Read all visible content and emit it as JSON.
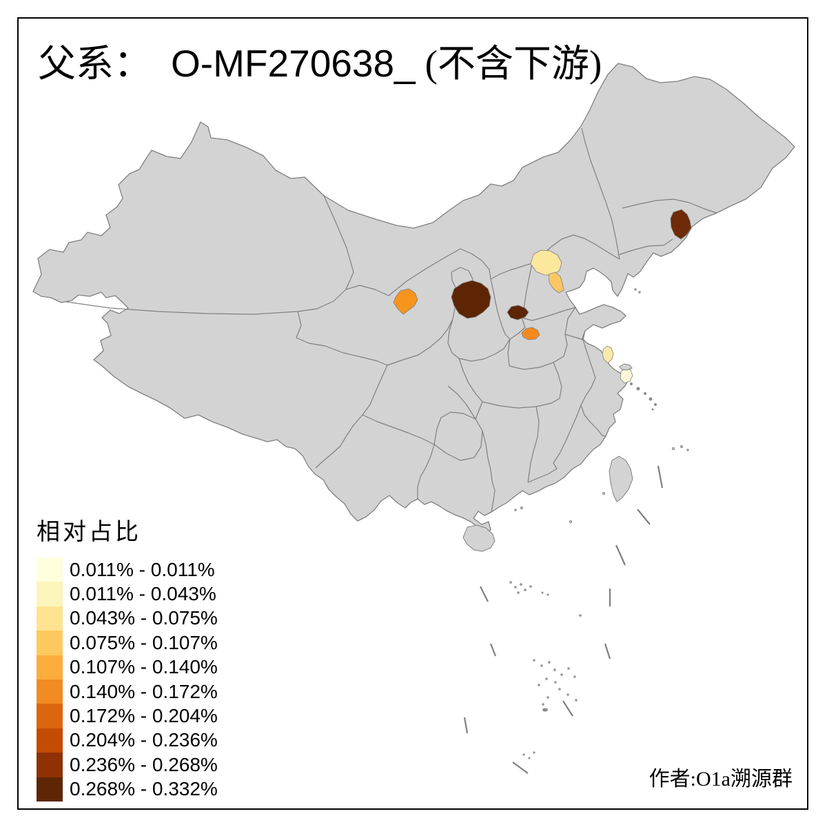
{
  "title": {
    "prefix": "父系：",
    "code": "O-MF270638_",
    "suffix": "(不含下游)"
  },
  "legend": {
    "title": "相对占比",
    "classes": [
      {
        "label": "0.011% - 0.011%",
        "color": "#FFFFDE"
      },
      {
        "label": "0.011% - 0.043%",
        "color": "#FDF4BB"
      },
      {
        "label": "0.043% - 0.075%",
        "color": "#FEE391"
      },
      {
        "label": "0.075% - 0.107%",
        "color": "#FEC95F"
      },
      {
        "label": "0.107% - 0.140%",
        "color": "#FDAD3C"
      },
      {
        "label": "0.140% - 0.172%",
        "color": "#F28B21"
      },
      {
        "label": "0.172% - 0.204%",
        "color": "#DC660F"
      },
      {
        "label": "0.204% - 0.236%",
        "color": "#C34B04"
      },
      {
        "label": "0.236% - 0.268%",
        "color": "#8F3105"
      },
      {
        "label": "0.268% - 0.332%",
        "color": "#5E2605"
      }
    ]
  },
  "attribution": "作者:O1a溯源群",
  "map": {
    "base_fill": "#D3D3D3",
    "border_color": "#7F7F7F",
    "sea_color": "#FFFFFF",
    "frame_color": "#000000",
    "regions": [
      {
        "name": "jilin-east-region",
        "color": "#6E2A09"
      },
      {
        "name": "beijing-region",
        "color": "#FCE79E"
      },
      {
        "name": "tianjin-region",
        "color": "#FBC764"
      },
      {
        "name": "gansu-central-region",
        "color": "#F7941E"
      },
      {
        "name": "shaanxi-north-region",
        "color": "#5E2505"
      },
      {
        "name": "shanxi-south-region",
        "color": "#5C2506"
      },
      {
        "name": "henan-north-region",
        "color": "#F6891E"
      },
      {
        "name": "jiangsu-central-region",
        "color": "#FBE9A9"
      },
      {
        "name": "shanghai-region",
        "color": "#FAF6D8"
      }
    ]
  },
  "chart_data": {
    "type": "choropleth-map",
    "title": "父系： O-MF270638_ (不含下游)",
    "legend_title": "相对占比",
    "legend_position": "bottom-left",
    "classes": [
      "0.011% - 0.011%",
      "0.011% - 0.043%",
      "0.043% - 0.075%",
      "0.075% - 0.107%",
      "0.107% - 0.140%",
      "0.140% - 0.172%",
      "0.172% - 0.204%",
      "0.204% - 0.236%",
      "0.236% - 0.268%",
      "0.268% - 0.332%"
    ],
    "highlighted_regions": [
      {
        "name": "jilin-east",
        "class_color": "#6E2A09"
      },
      {
        "name": "beijing",
        "class_color": "#FCE79E"
      },
      {
        "name": "tianjin",
        "class_color": "#FBC764"
      },
      {
        "name": "gansu-central",
        "class_color": "#F7941E"
      },
      {
        "name": "shaanxi-north",
        "class_color": "#5E2505"
      },
      {
        "name": "shanxi-south",
        "class_color": "#5C2506"
      },
      {
        "name": "henan-north",
        "class_color": "#F6891E"
      },
      {
        "name": "jiangsu-central",
        "class_color": "#FBE9A9"
      },
      {
        "name": "shanghai",
        "class_color": "#FAF6D8"
      }
    ],
    "annotation": "作者:O1a溯源群"
  }
}
